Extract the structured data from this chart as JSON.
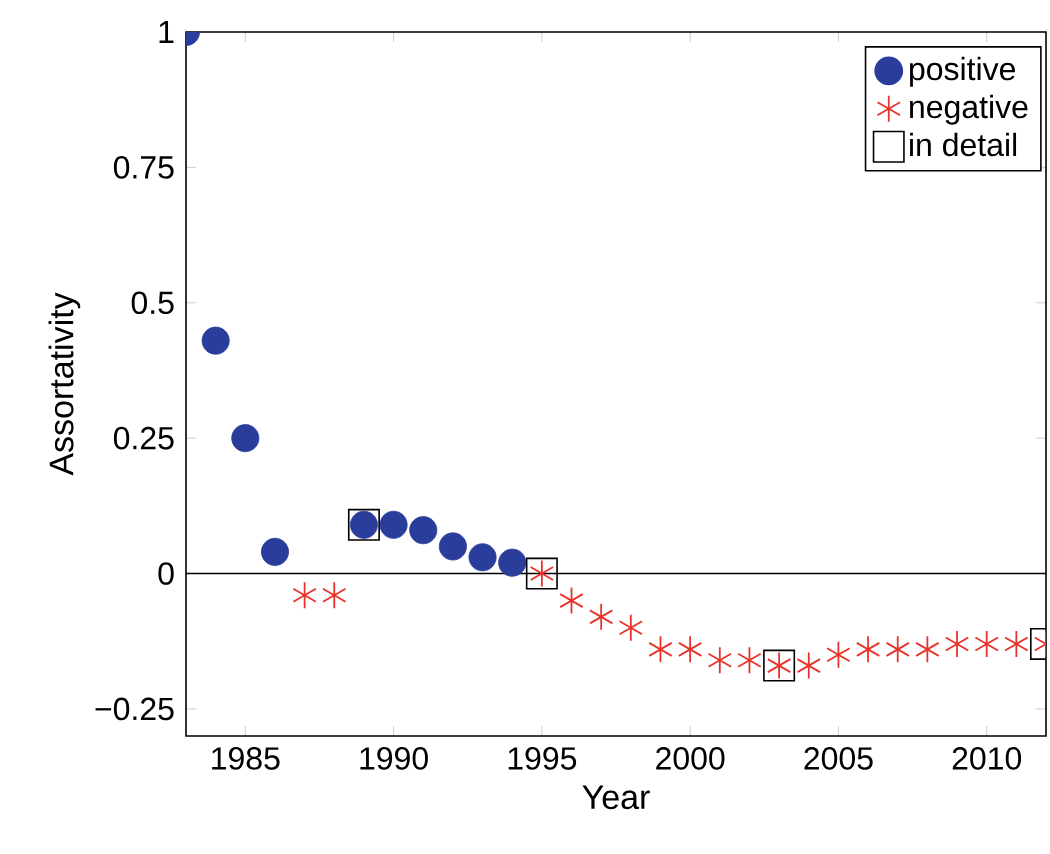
{
  "chart_data": {
    "type": "scatter",
    "xlabel": "Year",
    "ylabel": "Assortativity",
    "xlim": [
      1983,
      2012
    ],
    "ylim": [
      -0.3,
      1
    ],
    "xticks": [
      1985,
      1990,
      1995,
      2000,
      2005,
      2010
    ],
    "yticks": [
      {
        "value": -0.25,
        "label": "−0.25"
      },
      0,
      0.25,
      0.5,
      0.75,
      1
    ],
    "grid": false,
    "legend": "top right",
    "ref_lines": [
      {
        "axis": "y",
        "value": 0,
        "color": "#000000"
      }
    ],
    "series": [
      {
        "name": "positive",
        "color": "#2a3d9a",
        "marker": "circle",
        "x": [
          1983,
          1984,
          1985,
          1986,
          1989,
          1990,
          1991,
          1992,
          1993,
          1994
        ],
        "values": [
          1,
          0.43,
          0.25,
          0.04,
          0.09,
          0.09,
          0.08,
          0.05,
          0.03,
          0.02
        ]
      },
      {
        "name": "negative",
        "color": "#e8322a",
        "marker": "cross",
        "x": [
          1987,
          1988,
          1995,
          1996,
          1997,
          1998,
          1999,
          2000,
          2001,
          2002,
          2003,
          2004,
          2005,
          2006,
          2007,
          2008,
          2009,
          2010,
          2011,
          2012
        ],
        "values": [
          -0.04,
          -0.04,
          0,
          -0.05,
          -0.08,
          -0.1,
          -0.14,
          -0.14,
          -0.16,
          -0.16,
          -0.17,
          -0.17,
          -0.15,
          -0.14,
          -0.14,
          -0.14,
          -0.13,
          -0.13,
          -0.13,
          -0.13
        ]
      },
      {
        "name": "in detail",
        "color": "#000000",
        "marker": "square",
        "x": [
          1989,
          1995,
          2003,
          2012
        ],
        "values": [
          0.09,
          0,
          -0.17,
          -0.13
        ]
      }
    ]
  }
}
